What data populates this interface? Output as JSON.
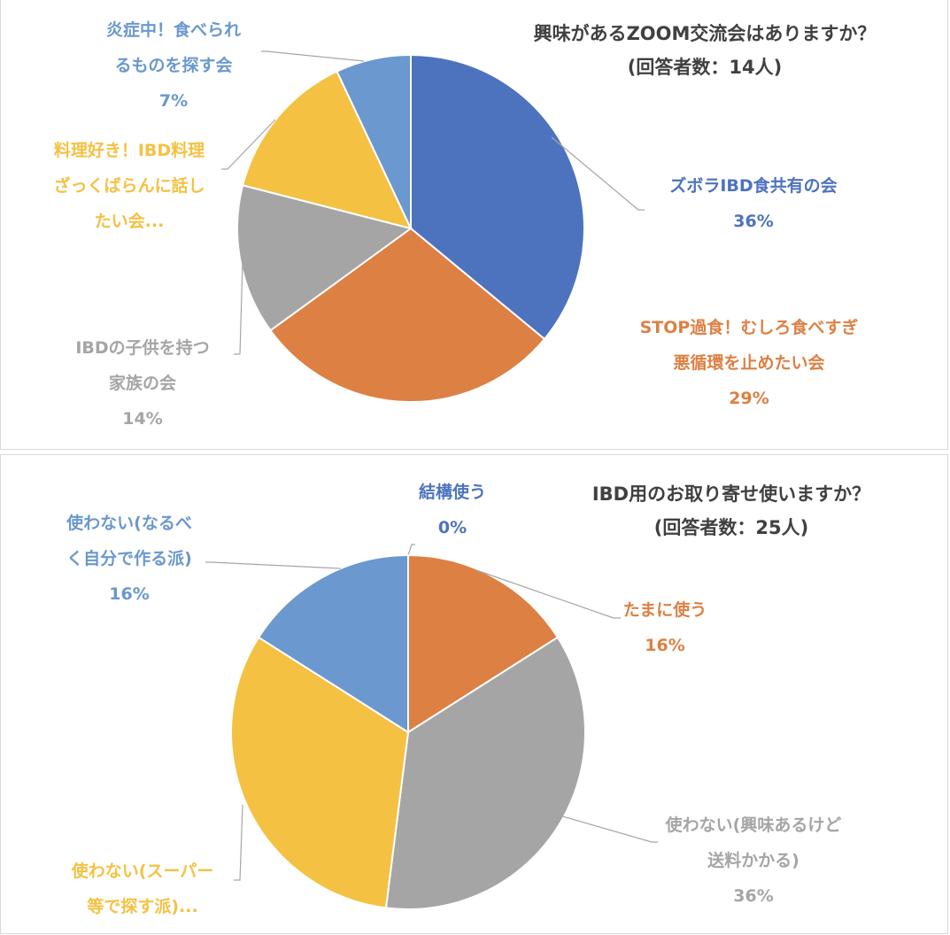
{
  "chart_data": [
    {
      "type": "pie",
      "title": "興味があるZOOM交流会はありますか？",
      "subtitle": "(回答者数：14人)",
      "slices": [
        {
          "label_lines": [
            "ズボラIBD食共有の会"
          ],
          "value": 36,
          "pct": "36%",
          "color": "#4e73be"
        },
        {
          "label_lines": [
            "STOP過食！むしろ食べすぎ",
            "悪循環を止めたい会"
          ],
          "value": 29,
          "pct": "29%",
          "color": "#dd8043"
        },
        {
          "label_lines": [
            "IBDの子供を持つ",
            "家族の会"
          ],
          "value": 14,
          "pct": "14%",
          "color": "#a5a5a5"
        },
        {
          "label_lines": [
            "料理好き！IBD料理",
            "ざっくばらんに話し",
            "たい会..."
          ],
          "value": 14,
          "pct": "",
          "color": "#f4c142"
        },
        {
          "label_lines": [
            "炎症中！食べられ",
            "るものを探す会"
          ],
          "value": 7,
          "pct": "7%",
          "color": "#6a98cf"
        }
      ]
    },
    {
      "type": "pie",
      "title": "IBD用のお取り寄せ使いますか？",
      "subtitle": "(回答者数：25人)",
      "slices": [
        {
          "label_lines": [
            "結構使う"
          ],
          "value": 0,
          "pct": "0%",
          "color": "#4e73be"
        },
        {
          "label_lines": [
            "たまに使う"
          ],
          "value": 16,
          "pct": "16%",
          "color": "#dd8043"
        },
        {
          "label_lines": [
            "使わない(興味あるけど",
            "送料かかる)"
          ],
          "value": 36,
          "pct": "36%",
          "color": "#a5a5a5"
        },
        {
          "label_lines": [
            "使わない(スーパー",
            "等で探す派)..."
          ],
          "value": 32,
          "pct": "",
          "color": "#f4c142"
        },
        {
          "label_lines": [
            "使わない(なるべ",
            "く自分で作る派)"
          ],
          "value": 16,
          "pct": "16%",
          "color": "#6a98cf"
        }
      ]
    }
  ]
}
